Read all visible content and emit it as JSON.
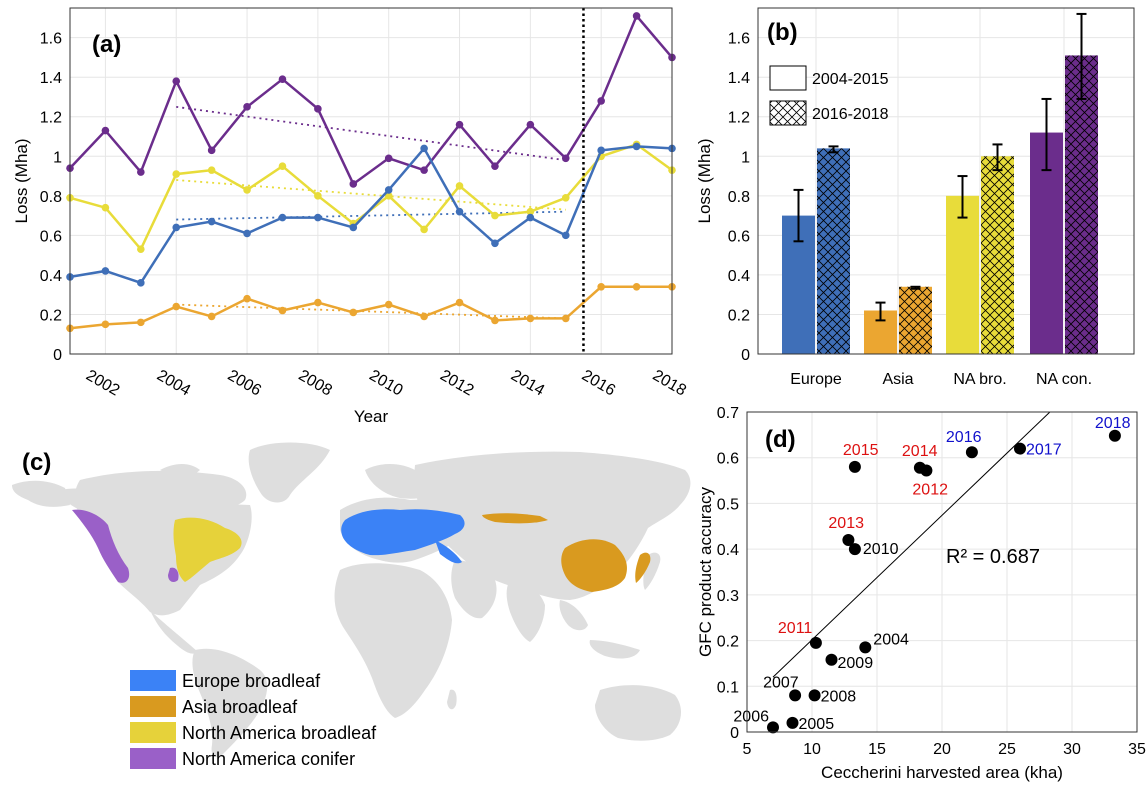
{
  "panels": {
    "a": "(a)",
    "b": "(b)",
    "c": "(c)",
    "d": "(d)"
  },
  "colors": {
    "europe": "#3f6fb8",
    "asia": "#eba631",
    "na_broadleaf": "#e8dc3a",
    "na_conifer": "#6b2d8c",
    "map_europe": "#3b82f6",
    "map_asia": "#d99a1f",
    "map_na_broadleaf": "#e6d23a",
    "map_na_conifer": "#9a60c8",
    "land": "#dedede",
    "red_label": "#dd1111",
    "blue_label": "#1111cc"
  },
  "chart_data": [
    {
      "type": "line",
      "ylabel": "Loss (Mha)",
      "xlabel": "Year",
      "xlim": [
        2001,
        2018
      ],
      "ylim": [
        0,
        1.75
      ],
      "x_ticks": [
        "2002",
        "2004",
        "2006",
        "2008",
        "2010",
        "2012",
        "2014",
        "2016",
        "2018"
      ],
      "y_ticks": [
        "0",
        "0.2",
        "0.4",
        "0.6",
        "0.8",
        "1",
        "1.2",
        "1.4",
        "1.6"
      ],
      "x": [
        2001,
        2002,
        2003,
        2004,
        2005,
        2006,
        2007,
        2008,
        2009,
        2010,
        2011,
        2012,
        2013,
        2014,
        2015,
        2016,
        2017,
        2018
      ],
      "divider_x": 2015.5,
      "grid": true,
      "series": [
        {
          "key": "na_conifer",
          "values": [
            0.94,
            1.13,
            0.92,
            1.38,
            1.03,
            1.25,
            1.39,
            1.24,
            0.86,
            0.99,
            0.93,
            1.16,
            0.95,
            1.16,
            0.99,
            1.28,
            1.71,
            1.5
          ],
          "trend": [
            [
              2004,
              1.25
            ],
            [
              2015,
              0.98
            ]
          ]
        },
        {
          "key": "na_broadleaf",
          "values": [
            0.79,
            0.74,
            0.53,
            0.91,
            0.93,
            0.83,
            0.95,
            0.8,
            0.66,
            0.8,
            0.63,
            0.85,
            0.7,
            0.72,
            0.79,
            1.0,
            1.06,
            0.93
          ],
          "trend": [
            [
              2004,
              0.88
            ],
            [
              2015,
              0.73
            ]
          ]
        },
        {
          "key": "europe",
          "values": [
            0.39,
            0.42,
            0.36,
            0.64,
            0.67,
            0.61,
            0.69,
            0.69,
            0.64,
            0.83,
            1.04,
            0.72,
            0.56,
            0.69,
            0.6,
            1.03,
            1.05,
            1.04
          ],
          "trend": [
            [
              2004,
              0.68
            ],
            [
              2015,
              0.72
            ]
          ]
        },
        {
          "key": "asia",
          "values": [
            0.13,
            0.15,
            0.16,
            0.24,
            0.19,
            0.28,
            0.22,
            0.26,
            0.21,
            0.25,
            0.19,
            0.26,
            0.17,
            0.18,
            0.18,
            0.34,
            0.34,
            0.34
          ],
          "trend": [
            [
              2004,
              0.25
            ],
            [
              2015,
              0.18
            ]
          ]
        }
      ]
    },
    {
      "type": "bar",
      "ylabel": "Loss (Mha)",
      "ylim": [
        0,
        1.75
      ],
      "y_ticks": [
        "0",
        "0.2",
        "0.4",
        "0.6",
        "0.8",
        "1",
        "1.2",
        "1.4",
        "1.6"
      ],
      "categories": [
        "Europe",
        "Asia",
        "NA bro.",
        "NA con."
      ],
      "legend": [
        "2004-2015",
        "2016-2018"
      ],
      "grid": true,
      "groups": [
        {
          "key": "europe",
          "p1": {
            "value": 0.7,
            "low": 0.57,
            "high": 0.83
          },
          "p2": {
            "value": 1.04,
            "low": 1.02,
            "high": 1.05
          }
        },
        {
          "key": "asia",
          "p1": {
            "value": 0.22,
            "low": 0.17,
            "high": 0.26
          },
          "p2": {
            "value": 0.34,
            "low": 0.33,
            "high": 0.34
          }
        },
        {
          "key": "na_broadleaf",
          "p1": {
            "value": 0.8,
            "low": 0.69,
            "high": 0.9
          },
          "p2": {
            "value": 1.0,
            "low": 0.93,
            "high": 1.06
          }
        },
        {
          "key": "na_conifer",
          "p1": {
            "value": 1.12,
            "low": 0.93,
            "high": 1.29
          },
          "p2": {
            "value": 1.51,
            "low": 1.29,
            "high": 1.72
          }
        }
      ]
    },
    {
      "type": "scatter",
      "xlabel": "Ceccherini harvested area (kha)",
      "ylabel": "GFC product accuracy",
      "xlim": [
        5,
        35
      ],
      "ylim": [
        0,
        0.7
      ],
      "x_ticks": [
        "5",
        "10",
        "15",
        "20",
        "25",
        "30",
        "35"
      ],
      "y_ticks": [
        "0",
        "0.1",
        "0.2",
        "0.3",
        "0.4",
        "0.5",
        "0.6",
        "0.7"
      ],
      "annotation": "R² = 0.687",
      "fit_line": [
        [
          7.0,
          0.12
        ],
        [
          28.3,
          0.7
        ]
      ],
      "grid": true,
      "points": [
        {
          "label": "2004",
          "x": 14.1,
          "y": 0.185,
          "label_color": "black"
        },
        {
          "label": "2005",
          "x": 8.5,
          "y": 0.02,
          "label_color": "black"
        },
        {
          "label": "2006",
          "x": 7.0,
          "y": 0.01,
          "label_color": "black"
        },
        {
          "label": "2007",
          "x": 8.7,
          "y": 0.08,
          "label_color": "black"
        },
        {
          "label": "2008",
          "x": 10.2,
          "y": 0.08,
          "label_color": "black"
        },
        {
          "label": "2009",
          "x": 11.5,
          "y": 0.158,
          "label_color": "black"
        },
        {
          "label": "2010",
          "x": 13.3,
          "y": 0.4,
          "label_color": "black"
        },
        {
          "label": "2011",
          "x": 10.3,
          "y": 0.195,
          "label_color": "red"
        },
        {
          "label": "2012",
          "x": 18.8,
          "y": 0.572,
          "label_color": "red"
        },
        {
          "label": "2013",
          "x": 12.8,
          "y": 0.42,
          "label_color": "red"
        },
        {
          "label": "2014",
          "x": 18.3,
          "y": 0.578,
          "label_color": "red"
        },
        {
          "label": "2015",
          "x": 13.3,
          "y": 0.58,
          "label_color": "red"
        },
        {
          "label": "2016",
          "x": 22.3,
          "y": 0.612,
          "label_color": "blue"
        },
        {
          "label": "2017",
          "x": 26.0,
          "y": 0.62,
          "label_color": "blue"
        },
        {
          "label": "2018",
          "x": 33.3,
          "y": 0.648,
          "label_color": "blue"
        }
      ]
    }
  ],
  "map_legend": [
    {
      "label": "Europe broadleaf",
      "color_key": "map_europe"
    },
    {
      "label": "Asia broadleaf",
      "color_key": "map_asia"
    },
    {
      "label": "North America broadleaf",
      "color_key": "map_na_broadleaf"
    },
    {
      "label": "North America conifer",
      "color_key": "map_na_conifer"
    }
  ]
}
